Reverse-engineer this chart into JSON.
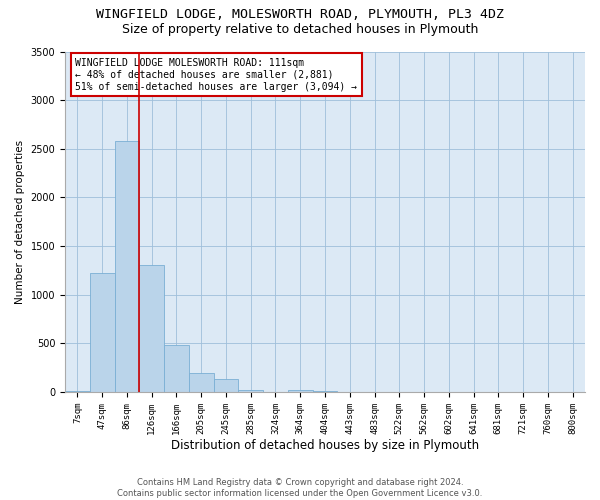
{
  "title": "WINGFIELD LODGE, MOLESWORTH ROAD, PLYMOUTH, PL3 4DZ",
  "subtitle": "Size of property relative to detached houses in Plymouth",
  "xlabel": "Distribution of detached houses by size in Plymouth",
  "ylabel": "Number of detached properties",
  "categories": [
    "7sqm",
    "47sqm",
    "86sqm",
    "126sqm",
    "166sqm",
    "205sqm",
    "245sqm",
    "285sqm",
    "324sqm",
    "364sqm",
    "404sqm",
    "443sqm",
    "483sqm",
    "522sqm",
    "562sqm",
    "602sqm",
    "641sqm",
    "681sqm",
    "721sqm",
    "760sqm",
    "800sqm"
  ],
  "values": [
    15,
    1220,
    2580,
    1310,
    480,
    200,
    130,
    20,
    0,
    20,
    15,
    0,
    0,
    0,
    0,
    0,
    0,
    0,
    0,
    0,
    0
  ],
  "bar_color": "#bad4ea",
  "bar_edge_color": "#7aafd4",
  "vline_color": "#cc0000",
  "annotation_text": "WINGFIELD LODGE MOLESWORTH ROAD: 111sqm\n← 48% of detached houses are smaller (2,881)\n51% of semi-detached houses are larger (3,094) →",
  "annotation_box_color": "#ffffff",
  "annotation_box_edge": "#cc0000",
  "ylim": [
    0,
    3500
  ],
  "yticks": [
    0,
    500,
    1000,
    1500,
    2000,
    2500,
    3000,
    3500
  ],
  "plot_bg": "#dce9f5",
  "footer": "Contains HM Land Registry data © Crown copyright and database right 2024.\nContains public sector information licensed under the Open Government Licence v3.0.",
  "title_fontsize": 9.5,
  "subtitle_fontsize": 9,
  "xlabel_fontsize": 8.5,
  "ylabel_fontsize": 7.5,
  "footer_fontsize": 6,
  "annot_fontsize": 7
}
